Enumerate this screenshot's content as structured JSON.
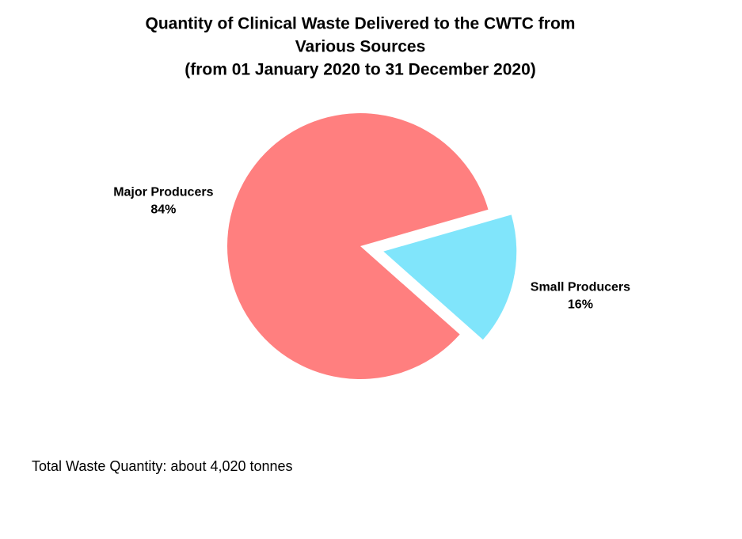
{
  "chart_data": {
    "type": "pie",
    "title": [
      "Quantity of Clinical Waste Delivered to the CWTC from",
      "Various Sources",
      "(from 01 January 2020 to 31 December 2020)"
    ],
    "categories": [
      "Major Producers",
      "Small Producers"
    ],
    "values": [
      84,
      16
    ],
    "value_labels": [
      "84%",
      "16%"
    ],
    "colors": [
      "#ff7f7f",
      "#80e5fb"
    ],
    "annotation": "Total Waste Quantity:  about 4,020  tonnes"
  }
}
